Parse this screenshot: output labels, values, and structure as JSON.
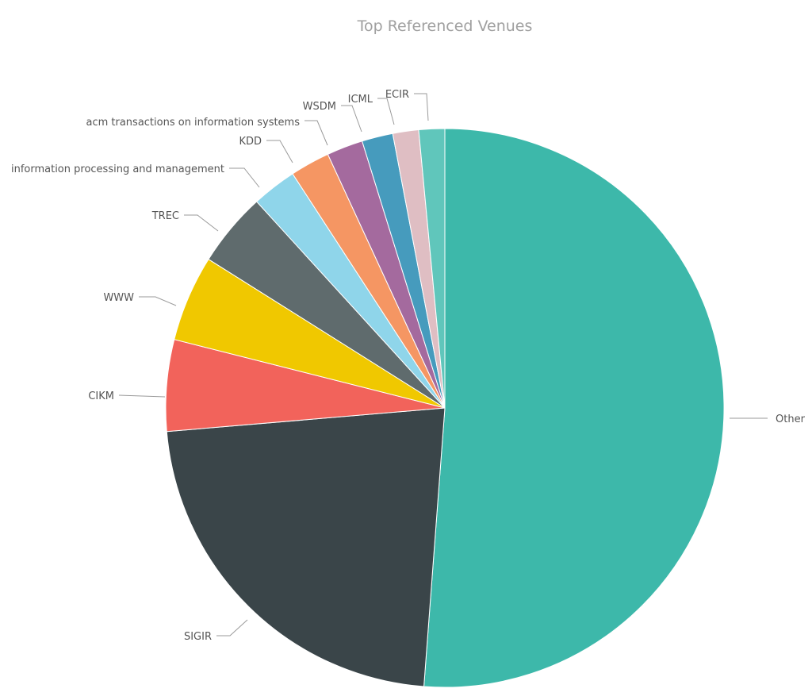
{
  "chart_data": {
    "type": "pie",
    "title": "Top Referenced Venues",
    "slices": [
      {
        "label": "Other",
        "value": 51.3,
        "color": "#3db8aa"
      },
      {
        "label": "SIGIR",
        "value": 22.5,
        "color": "#3a4549"
      },
      {
        "label": "CIKM",
        "value": 5.3,
        "color": "#f2635b"
      },
      {
        "label": "WWW",
        "value": 5.0,
        "color": "#f0c800"
      },
      {
        "label": "TREC",
        "value": 4.3,
        "color": "#5f6b6d"
      },
      {
        "label": "information processing and management",
        "value": 2.6,
        "color": "#8fd5ea"
      },
      {
        "label": "KDD",
        "value": 2.3,
        "color": "#f59663"
      },
      {
        "label": "acm transactions on information systems",
        "value": 2.1,
        "color": "#a46a9e"
      },
      {
        "label": "WSDM",
        "value": 1.8,
        "color": "#469bbd"
      },
      {
        "label": "ICML",
        "value": 1.5,
        "color": "#dfbec3"
      },
      {
        "label": "ECIR",
        "value": 1.5,
        "color": "#60c6bb"
      }
    ],
    "legend": "none",
    "labels": "outside with leader lines"
  }
}
